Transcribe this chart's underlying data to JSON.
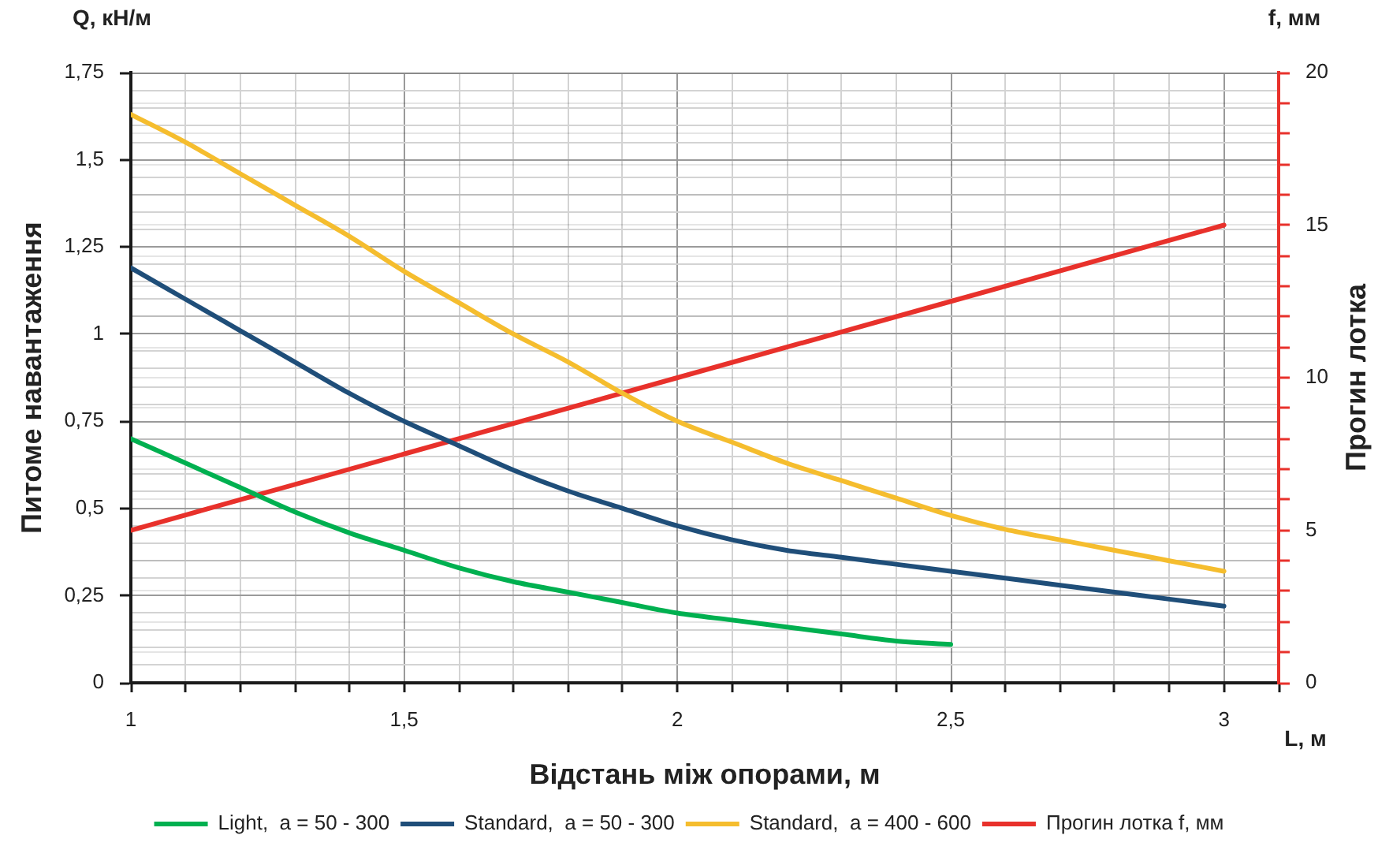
{
  "chart_data": {
    "type": "line",
    "xlabel": "Відстань між опорами, м",
    "ylabel": "Питоме навантаження",
    "y2label": "Прогин лотка",
    "annotations": [
      "Q, кН/м",
      "f, мм",
      "L, м"
    ],
    "series": [
      {
        "name": "Light,  a = 50 - 300",
        "color": "#00b050",
        "x": [
          1,
          1.1,
          1.2,
          1.3,
          1.4,
          1.5,
          1.6,
          1.7,
          1.8,
          1.9,
          2,
          2.1,
          2.2,
          2.3,
          2.4,
          2.5
        ],
        "values": [
          0.7,
          0.63,
          0.56,
          0.49,
          0.43,
          0.38,
          0.33,
          0.29,
          0.26,
          0.23,
          0.2,
          0.18,
          0.16,
          0.14,
          0.12,
          0.11
        ]
      },
      {
        "name": "Standard,  a = 50 - 300",
        "color": "#1f4e79",
        "x": [
          1,
          1.1,
          1.2,
          1.3,
          1.4,
          1.5,
          1.6,
          1.7,
          1.8,
          1.9,
          2,
          2.1,
          2.2,
          2.3,
          2.4,
          2.5,
          2.6,
          2.7,
          2.8,
          2.9,
          3
        ],
        "values": [
          1.19,
          1.1,
          1.01,
          0.92,
          0.83,
          0.75,
          0.68,
          0.61,
          0.55,
          0.5,
          0.45,
          0.41,
          0.38,
          0.36,
          0.34,
          0.32,
          0.3,
          0.28,
          0.26,
          0.24,
          0.22
        ]
      },
      {
        "name": "Standard,  a = 400 - 600",
        "color": "#f5bd2e",
        "x": [
          1,
          1.1,
          1.2,
          1.3,
          1.4,
          1.5,
          1.6,
          1.7,
          1.8,
          1.9,
          2,
          2.1,
          2.2,
          2.3,
          2.4,
          2.5,
          2.6,
          2.7,
          2.8,
          2.9,
          3
        ],
        "values": [
          1.63,
          1.55,
          1.46,
          1.37,
          1.28,
          1.18,
          1.09,
          1.0,
          0.92,
          0.83,
          0.75,
          0.69,
          0.63,
          0.58,
          0.53,
          0.48,
          0.44,
          0.41,
          0.38,
          0.35,
          0.32
        ]
      },
      {
        "name": "Прогин лотка f, мм",
        "color": "#e8312b",
        "axis": "y2",
        "x": [
          1,
          1.5,
          2,
          2.5,
          3
        ],
        "values": [
          5,
          7.5,
          10,
          12.5,
          15
        ]
      }
    ],
    "xlim": [
      1,
      3.1
    ],
    "xticks": [
      1,
      {
        "value": 1.1,
        "label": null
      },
      {
        "value": 1.2,
        "label": null
      },
      {
        "value": 1.3,
        "label": null
      },
      {
        "value": 1.4,
        "label": null
      },
      {
        "value": 1.5,
        "label": "1,5"
      },
      {
        "value": 1.6,
        "label": null
      },
      {
        "value": 1.7,
        "label": null
      },
      {
        "value": 1.8,
        "label": null
      },
      {
        "value": 1.9,
        "label": null
      },
      2,
      {
        "value": 2.1,
        "label": null
      },
      {
        "value": 2.2,
        "label": null
      },
      {
        "value": 2.3,
        "label": null
      },
      {
        "value": 2.4,
        "label": null
      },
      {
        "value": 2.5,
        "label": "2,5"
      },
      {
        "value": 2.6,
        "label": null
      },
      {
        "value": 2.7,
        "label": null
      },
      {
        "value": 2.8,
        "label": null
      },
      {
        "value": 2.9,
        "label": null
      },
      3,
      {
        "value": 3.1,
        "label": null
      }
    ],
    "ylim": [
      0,
      1.75
    ],
    "yticks": [
      0,
      {
        "value": 0.05,
        "label": null
      },
      {
        "value": 0.1,
        "label": null
      },
      {
        "value": 0.15,
        "label": null
      },
      {
        "value": 0.2,
        "label": null
      },
      {
        "value": 0.25,
        "label": "0,25"
      },
      {
        "value": 0.3,
        "label": null
      },
      {
        "value": 0.35,
        "label": null
      },
      {
        "value": 0.4,
        "label": null
      },
      {
        "value": 0.45,
        "label": null
      },
      {
        "value": 0.5,
        "label": "0,5"
      },
      {
        "value": 0.55,
        "label": null
      },
      {
        "value": 0.6,
        "label": null
      },
      {
        "value": 0.65,
        "label": null
      },
      {
        "value": 0.7,
        "label": null
      },
      {
        "value": 0.75,
        "label": "0,75"
      },
      {
        "value": 0.8,
        "label": null
      },
      {
        "value": 0.85,
        "label": null
      },
      {
        "value": 0.9,
        "label": null
      },
      {
        "value": 0.95,
        "label": null
      },
      1,
      {
        "value": 1.05,
        "label": null
      },
      {
        "value": 1.1,
        "label": null
      },
      {
        "value": 1.15,
        "label": null
      },
      {
        "value": 1.2,
        "label": null
      },
      {
        "value": 1.25,
        "label": "1,25"
      },
      {
        "value": 1.3,
        "label": null
      },
      {
        "value": 1.35,
        "label": null
      },
      {
        "value": 1.4,
        "label": null
      },
      {
        "value": 1.45,
        "label": null
      },
      {
        "value": 1.5,
        "label": "1,5"
      },
      {
        "value": 1.55,
        "label": null
      },
      {
        "value": 1.6,
        "label": null
      },
      {
        "value": 1.65,
        "label": null
      },
      {
        "value": 1.7,
        "label": null
      },
      {
        "value": 1.75,
        "label": "1,75"
      }
    ],
    "y2lim": [
      0,
      20
    ],
    "y2ticks": [
      0,
      {
        "value": 1,
        "label": null
      },
      {
        "value": 2,
        "label": null
      },
      {
        "value": 3,
        "label": null
      },
      {
        "value": 4,
        "label": null
      },
      5,
      {
        "value": 6,
        "label": null
      },
      {
        "value": 7,
        "label": null
      },
      {
        "value": 8,
        "label": null
      },
      {
        "value": 9,
        "label": null
      },
      10,
      {
        "value": 11,
        "label": null
      },
      {
        "value": 12,
        "label": null
      },
      {
        "value": 13,
        "label": null
      },
      {
        "value": 14,
        "label": null
      },
      15,
      {
        "value": 16,
        "label": null
      },
      {
        "value": 17,
        "label": null
      },
      {
        "value": 18,
        "label": null
      },
      {
        "value": 19,
        "label": null
      },
      20
    ],
    "grid": true,
    "legend": "bottom"
  }
}
